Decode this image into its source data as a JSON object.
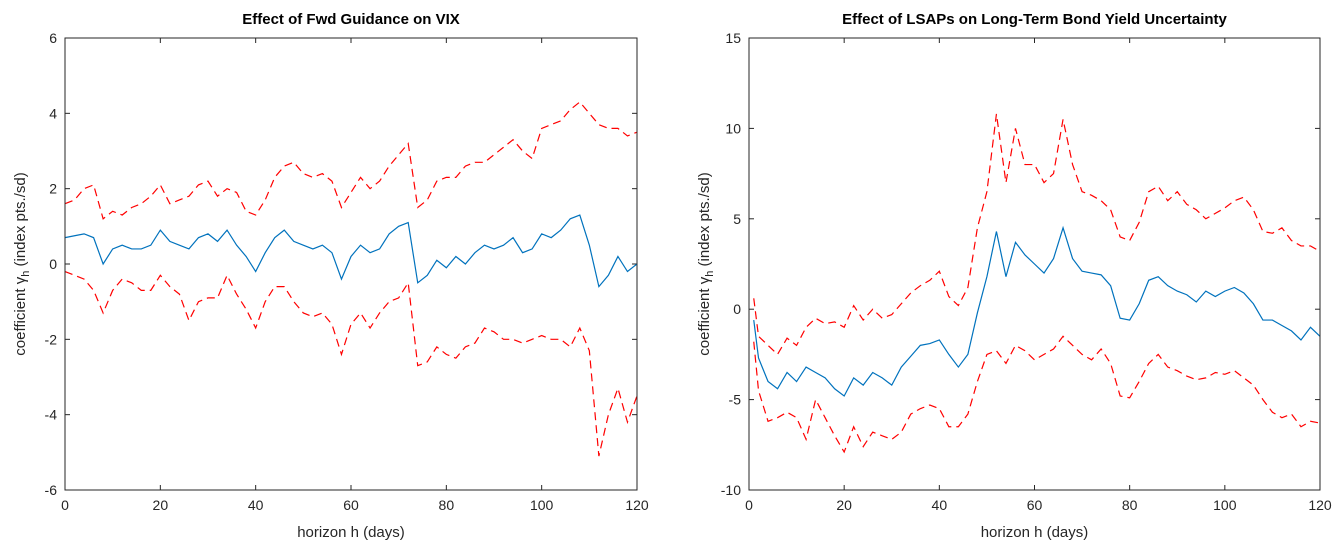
{
  "chart_data": [
    {
      "type": "line",
      "title": "Effect of Fwd Guidance on VIX",
      "xlabel": "horizon h (days)",
      "ylabel": "coefficient γ",
      "ylabel_sub": "h",
      "ylabel_rest": " (index pts./sd)",
      "x": [
        0,
        2,
        4,
        6,
        8,
        10,
        12,
        14,
        16,
        18,
        20,
        22,
        24,
        26,
        28,
        30,
        32,
        34,
        36,
        38,
        40,
        42,
        44,
        46,
        48,
        50,
        52,
        54,
        56,
        58,
        60,
        62,
        64,
        66,
        68,
        70,
        72,
        74,
        76,
        78,
        80,
        82,
        84,
        86,
        88,
        90,
        92,
        94,
        96,
        98,
        100,
        102,
        104,
        106,
        108,
        110,
        112,
        114,
        116,
        118,
        120
      ],
      "series": [
        {
          "color": "#0072bd",
          "line_style": "solid",
          "values": [
            0.7,
            0.75,
            0.8,
            0.7,
            0.0,
            0.4,
            0.5,
            0.4,
            0.4,
            0.5,
            0.9,
            0.6,
            0.5,
            0.4,
            0.7,
            0.8,
            0.6,
            0.9,
            0.5,
            0.2,
            -0.2,
            0.3,
            0.7,
            0.9,
            0.6,
            0.5,
            0.4,
            0.5,
            0.3,
            -0.4,
            0.2,
            0.5,
            0.3,
            0.4,
            0.8,
            1.0,
            1.1,
            -0.5,
            -0.3,
            0.1,
            -0.1,
            0.2,
            0.0,
            0.3,
            0.5,
            0.4,
            0.5,
            0.7,
            0.3,
            0.4,
            0.8,
            0.7,
            0.9,
            1.2,
            1.3,
            0.5,
            -0.6,
            -0.3,
            0.2,
            -0.2,
            0.0
          ]
        },
        {
          "color": "#ff0000",
          "line_style": "dashed",
          "values": [
            1.6,
            1.7,
            2.0,
            2.1,
            1.2,
            1.4,
            1.3,
            1.5,
            1.6,
            1.8,
            2.1,
            1.6,
            1.7,
            1.8,
            2.1,
            2.2,
            1.8,
            2.0,
            1.9,
            1.4,
            1.3,
            1.7,
            2.3,
            2.6,
            2.7,
            2.4,
            2.3,
            2.4,
            2.2,
            1.5,
            1.9,
            2.3,
            2.0,
            2.2,
            2.6,
            2.9,
            3.2,
            1.5,
            1.7,
            2.2,
            2.3,
            2.3,
            2.6,
            2.7,
            2.7,
            2.9,
            3.1,
            3.3,
            3.0,
            2.8,
            3.6,
            3.7,
            3.8,
            4.1,
            4.3,
            4.0,
            3.7,
            3.6,
            3.6,
            3.4,
            3.5
          ]
        },
        {
          "color": "#ff0000",
          "line_style": "dashed",
          "values": [
            -0.2,
            -0.3,
            -0.4,
            -0.7,
            -1.3,
            -0.7,
            -0.4,
            -0.5,
            -0.7,
            -0.7,
            -0.3,
            -0.6,
            -0.8,
            -1.5,
            -1.0,
            -0.9,
            -0.9,
            -0.3,
            -0.8,
            -1.2,
            -1.7,
            -1.0,
            -0.6,
            -0.6,
            -1.0,
            -1.3,
            -1.4,
            -1.3,
            -1.6,
            -2.4,
            -1.6,
            -1.3,
            -1.7,
            -1.3,
            -1.0,
            -0.9,
            -0.5,
            -2.7,
            -2.6,
            -2.2,
            -2.4,
            -2.5,
            -2.2,
            -2.1,
            -1.7,
            -1.8,
            -2.0,
            -2.0,
            -2.1,
            -2.0,
            -1.9,
            -2.0,
            -2.0,
            -2.2,
            -1.7,
            -2.3,
            -5.1,
            -4.0,
            -3.3,
            -4.2,
            -3.5
          ]
        }
      ],
      "xlim": [
        0,
        120
      ],
      "xticks": [
        0,
        20,
        40,
        60,
        80,
        100,
        120
      ],
      "ylim": [
        -6,
        6
      ],
      "yticks": [
        -6,
        -4,
        -2,
        0,
        2,
        4,
        6
      ]
    },
    {
      "type": "line",
      "title": "Effect of LSAPs on Long-Term Bond Yield Uncertainty",
      "xlabel": "horizon h (days)",
      "ylabel": "coefficient γ",
      "ylabel_sub": "h",
      "ylabel_rest": " (index pts./sd)",
      "x": [
        1,
        2,
        4,
        6,
        8,
        10,
        12,
        14,
        16,
        18,
        20,
        22,
        24,
        26,
        28,
        30,
        32,
        34,
        36,
        38,
        40,
        42,
        44,
        46,
        48,
        50,
        52,
        54,
        56,
        58,
        60,
        62,
        64,
        66,
        68,
        70,
        72,
        74,
        76,
        78,
        80,
        82,
        84,
        86,
        88,
        90,
        92,
        94,
        96,
        98,
        100,
        102,
        104,
        106,
        108,
        110,
        112,
        114,
        116,
        118,
        120
      ],
      "series": [
        {
          "color": "#0072bd",
          "line_style": "solid",
          "values": [
            -0.6,
            -2.7,
            -4.0,
            -4.4,
            -3.5,
            -4.0,
            -3.2,
            -3.5,
            -3.8,
            -4.4,
            -4.8,
            -3.8,
            -4.2,
            -3.5,
            -3.8,
            -4.2,
            -3.2,
            -2.6,
            -2.0,
            -1.9,
            -1.7,
            -2.5,
            -3.2,
            -2.5,
            -0.2,
            1.8,
            4.3,
            1.8,
            3.7,
            3.0,
            2.5,
            2.0,
            2.8,
            4.5,
            2.8,
            2.1,
            2.0,
            1.9,
            1.3,
            -0.5,
            -0.6,
            0.3,
            1.6,
            1.8,
            1.3,
            1.0,
            0.8,
            0.4,
            1.0,
            0.7,
            1.0,
            1.2,
            0.9,
            0.3,
            -0.6,
            -0.6,
            -0.9,
            -1.2,
            -1.7,
            -1.0,
            -1.5
          ]
        },
        {
          "color": "#ff0000",
          "line_style": "dashed",
          "values": [
            0.6,
            -1.5,
            -2.0,
            -2.5,
            -1.6,
            -2.0,
            -1.0,
            -0.5,
            -0.8,
            -0.7,
            -1.0,
            0.2,
            -0.6,
            0.0,
            -0.5,
            -0.3,
            0.3,
            0.9,
            1.3,
            1.6,
            2.1,
            0.7,
            0.2,
            1.2,
            4.5,
            6.5,
            10.8,
            7.0,
            10.0,
            8.0,
            8.0,
            7.0,
            7.5,
            10.5,
            8.0,
            6.5,
            6.3,
            6.0,
            5.5,
            4.0,
            3.8,
            4.8,
            6.5,
            6.8,
            6.0,
            6.5,
            5.8,
            5.5,
            5.0,
            5.3,
            5.6,
            6.0,
            6.2,
            5.5,
            4.3,
            4.2,
            4.5,
            3.8,
            3.5,
            3.5,
            3.2
          ]
        },
        {
          "color": "#ff0000",
          "line_style": "dashed",
          "values": [
            -1.8,
            -4.5,
            -6.2,
            -6.0,
            -5.7,
            -6.0,
            -7.2,
            -5.0,
            -6.0,
            -7.0,
            -7.9,
            -6.5,
            -7.6,
            -6.8,
            -7.0,
            -7.2,
            -6.8,
            -5.8,
            -5.5,
            -5.3,
            -5.5,
            -6.5,
            -6.5,
            -5.8,
            -4.0,
            -2.5,
            -2.3,
            -3.0,
            -2.0,
            -2.3,
            -2.8,
            -2.5,
            -2.2,
            -1.5,
            -2.0,
            -2.5,
            -2.8,
            -2.2,
            -3.0,
            -4.8,
            -4.9,
            -4.0,
            -3.0,
            -2.5,
            -3.2,
            -3.4,
            -3.7,
            -3.9,
            -3.8,
            -3.5,
            -3.6,
            -3.4,
            -3.8,
            -4.2,
            -5.0,
            -5.7,
            -6.0,
            -5.8,
            -6.5,
            -6.2,
            -6.3
          ]
        }
      ],
      "xlim": [
        0,
        120
      ],
      "xticks": [
        0,
        20,
        40,
        60,
        80,
        100,
        120
      ],
      "ylim": [
        -10,
        15
      ],
      "yticks": [
        -10,
        -5,
        0,
        5,
        10,
        15
      ]
    }
  ]
}
